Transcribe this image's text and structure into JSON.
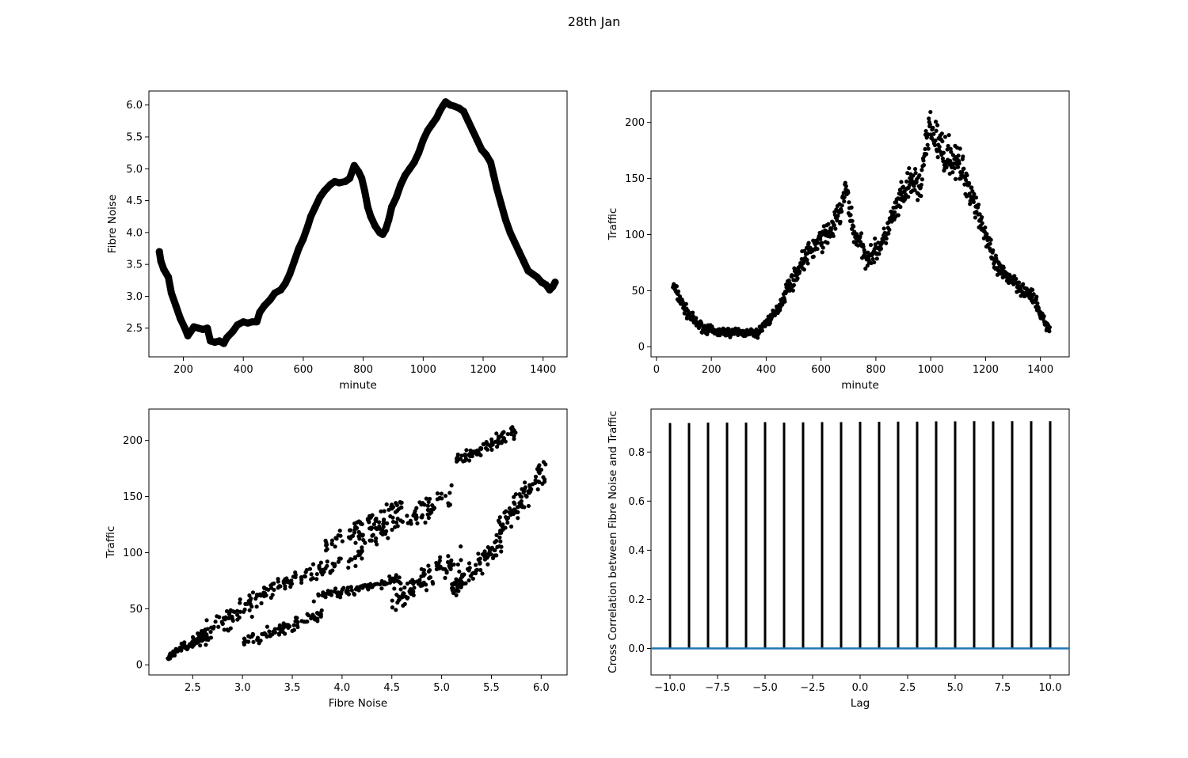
{
  "figure": {
    "title": "28th Jan"
  },
  "chart_data": [
    {
      "id": "noise-vs-minute",
      "type": "line",
      "title": "",
      "xlabel": "minute",
      "ylabel": "Fibre Noise",
      "xlim": [
        85,
        1480
      ],
      "ylim": [
        2.05,
        6.22
      ],
      "xticks": [
        200,
        400,
        600,
        800,
        1000,
        1200,
        1400
      ],
      "yticks": [
        2.5,
        3.0,
        3.5,
        4.0,
        4.5,
        5.0,
        5.5,
        6.0
      ],
      "marker": "thick-black-line",
      "points": [
        [
          120,
          3.7
        ],
        [
          125,
          3.55
        ],
        [
          135,
          3.42
        ],
        [
          150,
          3.3
        ],
        [
          160,
          3.05
        ],
        [
          175,
          2.85
        ],
        [
          190,
          2.65
        ],
        [
          205,
          2.5
        ],
        [
          215,
          2.38
        ],
        [
          225,
          2.45
        ],
        [
          235,
          2.52
        ],
        [
          250,
          2.5
        ],
        [
          265,
          2.48
        ],
        [
          280,
          2.5
        ],
        [
          290,
          2.3
        ],
        [
          305,
          2.28
        ],
        [
          320,
          2.3
        ],
        [
          335,
          2.26
        ],
        [
          345,
          2.35
        ],
        [
          365,
          2.45
        ],
        [
          380,
          2.55
        ],
        [
          400,
          2.6
        ],
        [
          415,
          2.58
        ],
        [
          430,
          2.6
        ],
        [
          445,
          2.6
        ],
        [
          455,
          2.75
        ],
        [
          470,
          2.85
        ],
        [
          490,
          2.95
        ],
        [
          505,
          3.05
        ],
        [
          525,
          3.1
        ],
        [
          540,
          3.2
        ],
        [
          555,
          3.35
        ],
        [
          570,
          3.55
        ],
        [
          585,
          3.75
        ],
        [
          600,
          3.9
        ],
        [
          615,
          4.1
        ],
        [
          625,
          4.25
        ],
        [
          640,
          4.4
        ],
        [
          655,
          4.55
        ],
        [
          670,
          4.65
        ],
        [
          690,
          4.75
        ],
        [
          705,
          4.8
        ],
        [
          720,
          4.78
        ],
        [
          740,
          4.8
        ],
        [
          755,
          4.85
        ],
        [
          770,
          5.05
        ],
        [
          785,
          4.95
        ],
        [
          795,
          4.85
        ],
        [
          805,
          4.65
        ],
        [
          815,
          4.4
        ],
        [
          825,
          4.25
        ],
        [
          840,
          4.1
        ],
        [
          855,
          4.0
        ],
        [
          865,
          3.97
        ],
        [
          875,
          4.05
        ],
        [
          885,
          4.2
        ],
        [
          895,
          4.4
        ],
        [
          910,
          4.55
        ],
        [
          925,
          4.75
        ],
        [
          940,
          4.9
        ],
        [
          955,
          5.0
        ],
        [
          970,
          5.1
        ],
        [
          985,
          5.25
        ],
        [
          1000,
          5.45
        ],
        [
          1015,
          5.6
        ],
        [
          1030,
          5.7
        ],
        [
          1045,
          5.8
        ],
        [
          1055,
          5.9
        ],
        [
          1065,
          5.98
        ],
        [
          1075,
          6.05
        ],
        [
          1090,
          6.0
        ],
        [
          1105,
          5.98
        ],
        [
          1120,
          5.95
        ],
        [
          1135,
          5.9
        ],
        [
          1150,
          5.75
        ],
        [
          1165,
          5.6
        ],
        [
          1180,
          5.45
        ],
        [
          1195,
          5.3
        ],
        [
          1210,
          5.22
        ],
        [
          1225,
          5.1
        ],
        [
          1235,
          4.9
        ],
        [
          1245,
          4.7
        ],
        [
          1260,
          4.45
        ],
        [
          1275,
          4.2
        ],
        [
          1290,
          4.0
        ],
        [
          1305,
          3.85
        ],
        [
          1320,
          3.7
        ],
        [
          1335,
          3.55
        ],
        [
          1350,
          3.4
        ],
        [
          1365,
          3.35
        ],
        [
          1380,
          3.3
        ],
        [
          1395,
          3.22
        ],
        [
          1410,
          3.18
        ],
        [
          1422,
          3.1
        ],
        [
          1432,
          3.15
        ],
        [
          1440,
          3.22
        ]
      ]
    },
    {
      "id": "traffic-vs-minute",
      "type": "scatter",
      "title": "",
      "xlabel": "minute",
      "ylabel": "Traffic",
      "xlim": [
        -20,
        1505
      ],
      "ylim": [
        -9,
        228
      ],
      "xticks": [
        0,
        200,
        400,
        600,
        800,
        1000,
        1200,
        1400
      ],
      "yticks": [
        0,
        50,
        100,
        150,
        200
      ],
      "trend": [
        [
          60,
          55
        ],
        [
          80,
          45
        ],
        [
          100,
          35
        ],
        [
          120,
          28
        ],
        [
          150,
          20
        ],
        [
          180,
          16
        ],
        [
          220,
          13
        ],
        [
          260,
          13
        ],
        [
          300,
          13
        ],
        [
          340,
          12
        ],
        [
          370,
          12
        ],
        [
          400,
          22
        ],
        [
          430,
          28
        ],
        [
          460,
          42
        ],
        [
          480,
          55
        ],
        [
          500,
          60
        ],
        [
          530,
          75
        ],
        [
          560,
          85
        ],
        [
          600,
          95
        ],
        [
          640,
          105
        ],
        [
          670,
          120
        ],
        [
          690,
          140
        ],
        [
          700,
          130
        ],
        [
          720,
          100
        ],
        [
          740,
          95
        ],
        [
          760,
          80
        ],
        [
          800,
          85
        ],
        [
          830,
          95
        ],
        [
          850,
          110
        ],
        [
          880,
          125
        ],
        [
          910,
          140
        ],
        [
          940,
          148
        ],
        [
          960,
          140
        ],
        [
          980,
          175
        ],
        [
          1000,
          195
        ],
        [
          1020,
          185
        ],
        [
          1040,
          175
        ],
        [
          1080,
          168
        ],
        [
          1120,
          155
        ],
        [
          1160,
          130
        ],
        [
          1180,
          115
        ],
        [
          1200,
          100
        ],
        [
          1230,
          75
        ],
        [
          1260,
          65
        ],
        [
          1300,
          60
        ],
        [
          1340,
          50
        ],
        [
          1370,
          45
        ],
        [
          1400,
          30
        ],
        [
          1420,
          20
        ],
        [
          1435,
          15
        ]
      ]
    },
    {
      "id": "traffic-vs-noise",
      "type": "scatter",
      "title": "",
      "xlabel": "Fibre Noise",
      "ylabel": "Traffic",
      "xlim": [
        2.06,
        6.26
      ],
      "ylim": [
        -9,
        228
      ],
      "xticks": [
        2.5,
        3.0,
        3.5,
        4.0,
        4.5,
        5.0,
        5.5,
        6.0
      ],
      "yticks": [
        0,
        50,
        100,
        150,
        200
      ],
      "clusters": [
        {
          "x_range": [
            2.25,
            2.65
          ],
          "y_range": [
            5,
            30
          ]
        },
        {
          "x_range": [
            2.55,
            3.3
          ],
          "y_range": [
            15,
            75
          ]
        },
        {
          "x_range": [
            3.0,
            3.8
          ],
          "y_range": [
            15,
            50
          ]
        },
        {
          "x_range": [
            3.2,
            4.2
          ],
          "y_range": [
            60,
            105
          ]
        },
        {
          "x_range": [
            3.8,
            4.6
          ],
          "y_range": [
            95,
            150
          ]
        },
        {
          "x_range": [
            4.2,
            5.1
          ],
          "y_range": [
            100,
            160
          ]
        },
        {
          "x_range": [
            4.5,
            5.2
          ],
          "y_range": [
            45,
            110
          ]
        },
        {
          "x_range": [
            3.7,
            4.6
          ],
          "y_range": [
            55,
            80
          ]
        },
        {
          "x_range": [
            5.1,
            5.6
          ],
          "y_range": [
            60,
            115
          ]
        },
        {
          "x_range": [
            5.15,
            5.75
          ],
          "y_range": [
            175,
            215
          ]
        },
        {
          "x_range": [
            5.55,
            6.05
          ],
          "y_range": [
            110,
            185
          ]
        }
      ]
    },
    {
      "id": "cross-correlation",
      "type": "bar",
      "title": "",
      "xlabel": "Lag",
      "ylabel": "Cross Correlation between Fibre Noise and Traffic",
      "xlim": [
        -11.0,
        11.0
      ],
      "ylim": [
        -0.108,
        0.975
      ],
      "xticks": [
        -10.0,
        -7.5,
        -5.0,
        -2.5,
        0.0,
        2.5,
        5.0,
        7.5,
        10.0
      ],
      "xtick_labels": [
        "−10.0",
        "−7.5",
        "−5.0",
        "−2.5",
        "0.0",
        "2.5",
        "5.0",
        "7.5",
        "10.0"
      ],
      "yticks": [
        0.0,
        0.2,
        0.4,
        0.6,
        0.8
      ],
      "yticks_labels": [
        "0.0",
        "0.2",
        "0.4",
        "0.6",
        "0.8"
      ],
      "baseline_color": "#1f77b4",
      "lags": [
        -10,
        -9,
        -8,
        -7,
        -6,
        -5,
        -4,
        -3,
        -2,
        -1,
        0,
        1,
        2,
        3,
        4,
        5,
        6,
        7,
        8,
        9,
        10
      ],
      "values": [
        0.918,
        0.918,
        0.92,
        0.92,
        0.92,
        0.922,
        0.92,
        0.921,
        0.922,
        0.922,
        0.923,
        0.923,
        0.924,
        0.924,
        0.925,
        0.925,
        0.926,
        0.925,
        0.926,
        0.926,
        0.926
      ]
    }
  ]
}
